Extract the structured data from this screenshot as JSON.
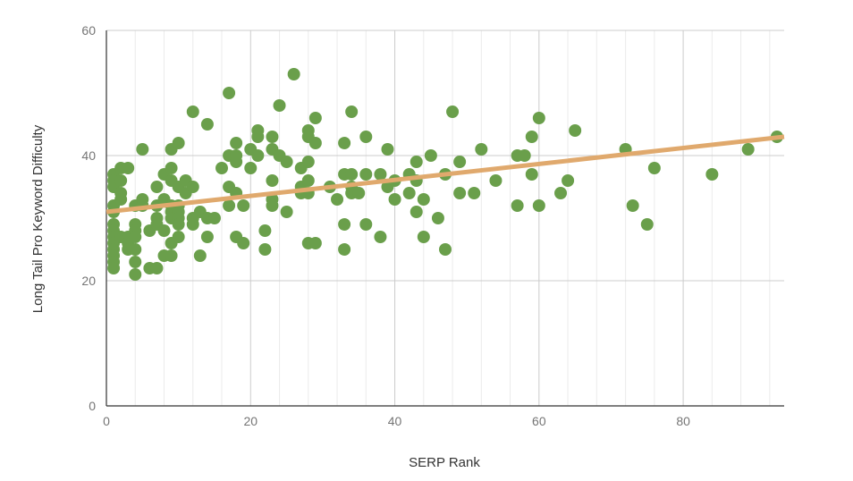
{
  "colors": {
    "point": "#6a9f4b",
    "trendline": "#e0a96d",
    "major_grid": "#cccccc",
    "minor_grid": "#ebebeb",
    "axis": "#333333"
  },
  "chart_data": {
    "type": "scatter",
    "title": "",
    "xlabel": "SERP Rank",
    "ylabel": "Long Tail Pro Keyword Difficulty",
    "xlim": [
      0,
      94
    ],
    "ylim": [
      0,
      60
    ],
    "x_ticks": [
      0,
      20,
      40,
      60,
      80
    ],
    "x_tick_labels": [
      "0",
      "20",
      "40",
      "60",
      "80"
    ],
    "y_ticks": [
      0,
      20,
      40,
      60
    ],
    "y_tick_labels": [
      "0",
      "20",
      "40",
      "60"
    ],
    "grid": true,
    "legend": "none",
    "trendline": {
      "type": "linear",
      "x": [
        0,
        94
      ],
      "y": [
        31,
        43
      ]
    },
    "points": [
      [
        1,
        37
      ],
      [
        1,
        36
      ],
      [
        1,
        35
      ],
      [
        1,
        32
      ],
      [
        1,
        31
      ],
      [
        1,
        29
      ],
      [
        1,
        28
      ],
      [
        1,
        27
      ],
      [
        1,
        26
      ],
      [
        1,
        25
      ],
      [
        1,
        24
      ],
      [
        1,
        23
      ],
      [
        1,
        22
      ],
      [
        2,
        38
      ],
      [
        2,
        36
      ],
      [
        2,
        34
      ],
      [
        2,
        33
      ],
      [
        2,
        27
      ],
      [
        3,
        38
      ],
      [
        3,
        27
      ],
      [
        3,
        26
      ],
      [
        3,
        25
      ],
      [
        4,
        32
      ],
      [
        4,
        29
      ],
      [
        4,
        28
      ],
      [
        4,
        27
      ],
      [
        4,
        25
      ],
      [
        4,
        23
      ],
      [
        4,
        21
      ],
      [
        5,
        41
      ],
      [
        5,
        33
      ],
      [
        5,
        32
      ],
      [
        6,
        28
      ],
      [
        6,
        22
      ],
      [
        7,
        35
      ],
      [
        7,
        32
      ],
      [
        7,
        30
      ],
      [
        7,
        29
      ],
      [
        7,
        22
      ],
      [
        8,
        37
      ],
      [
        8,
        33
      ],
      [
        8,
        28
      ],
      [
        8,
        24
      ],
      [
        9,
        41
      ],
      [
        9,
        38
      ],
      [
        9,
        36
      ],
      [
        9,
        32
      ],
      [
        9,
        31
      ],
      [
        9,
        30
      ],
      [
        9,
        26
      ],
      [
        9,
        24
      ],
      [
        10,
        42
      ],
      [
        10,
        35
      ],
      [
        10,
        32
      ],
      [
        10,
        31
      ],
      [
        10,
        30
      ],
      [
        10,
        29
      ],
      [
        10,
        27
      ],
      [
        11,
        36
      ],
      [
        11,
        34
      ],
      [
        12,
        47
      ],
      [
        12,
        35
      ],
      [
        12,
        30
      ],
      [
        12,
        29
      ],
      [
        13,
        31
      ],
      [
        13,
        24
      ],
      [
        14,
        45
      ],
      [
        14,
        30
      ],
      [
        14,
        27
      ],
      [
        15,
        30
      ],
      [
        16,
        38
      ],
      [
        17,
        50
      ],
      [
        17,
        40
      ],
      [
        17,
        35
      ],
      [
        17,
        32
      ],
      [
        18,
        42
      ],
      [
        18,
        40
      ],
      [
        18,
        39
      ],
      [
        18,
        34
      ],
      [
        18,
        27
      ],
      [
        19,
        32
      ],
      [
        19,
        26
      ],
      [
        20,
        41
      ],
      [
        20,
        38
      ],
      [
        21,
        44
      ],
      [
        21,
        43
      ],
      [
        21,
        40
      ],
      [
        22,
        28
      ],
      [
        22,
        25
      ],
      [
        23,
        43
      ],
      [
        23,
        41
      ],
      [
        23,
        36
      ],
      [
        23,
        33
      ],
      [
        23,
        32
      ],
      [
        24,
        48
      ],
      [
        24,
        40
      ],
      [
        25,
        39
      ],
      [
        25,
        31
      ],
      [
        26,
        53
      ],
      [
        27,
        38
      ],
      [
        27,
        35
      ],
      [
        27,
        34
      ],
      [
        28,
        44
      ],
      [
        28,
        43
      ],
      [
        28,
        39
      ],
      [
        28,
        36
      ],
      [
        28,
        34
      ],
      [
        28,
        26
      ],
      [
        29,
        46
      ],
      [
        29,
        42
      ],
      [
        29,
        26
      ],
      [
        31,
        35
      ],
      [
        32,
        33
      ],
      [
        33,
        42
      ],
      [
        33,
        37
      ],
      [
        33,
        29
      ],
      [
        33,
        25
      ],
      [
        34,
        47
      ],
      [
        34,
        37
      ],
      [
        34,
        35
      ],
      [
        34,
        34
      ],
      [
        35,
        34
      ],
      [
        36,
        43
      ],
      [
        36,
        37
      ],
      [
        36,
        29
      ],
      [
        38,
        37
      ],
      [
        38,
        27
      ],
      [
        39,
        41
      ],
      [
        39,
        35
      ],
      [
        40,
        36
      ],
      [
        40,
        33
      ],
      [
        42,
        37
      ],
      [
        42,
        34
      ],
      [
        43,
        39
      ],
      [
        43,
        36
      ],
      [
        43,
        31
      ],
      [
        44,
        33
      ],
      [
        44,
        27
      ],
      [
        45,
        40
      ],
      [
        46,
        30
      ],
      [
        47,
        37
      ],
      [
        47,
        25
      ],
      [
        48,
        47
      ],
      [
        49,
        39
      ],
      [
        49,
        34
      ],
      [
        51,
        34
      ],
      [
        52,
        41
      ],
      [
        54,
        36
      ],
      [
        57,
        40
      ],
      [
        57,
        32
      ],
      [
        58,
        40
      ],
      [
        59,
        43
      ],
      [
        59,
        37
      ],
      [
        60,
        46
      ],
      [
        60,
        32
      ],
      [
        63,
        34
      ],
      [
        64,
        36
      ],
      [
        65,
        44
      ],
      [
        72,
        41
      ],
      [
        73,
        32
      ],
      [
        75,
        29
      ],
      [
        76,
        38
      ],
      [
        84,
        37
      ],
      [
        89,
        41
      ],
      [
        93,
        43
      ]
    ]
  }
}
